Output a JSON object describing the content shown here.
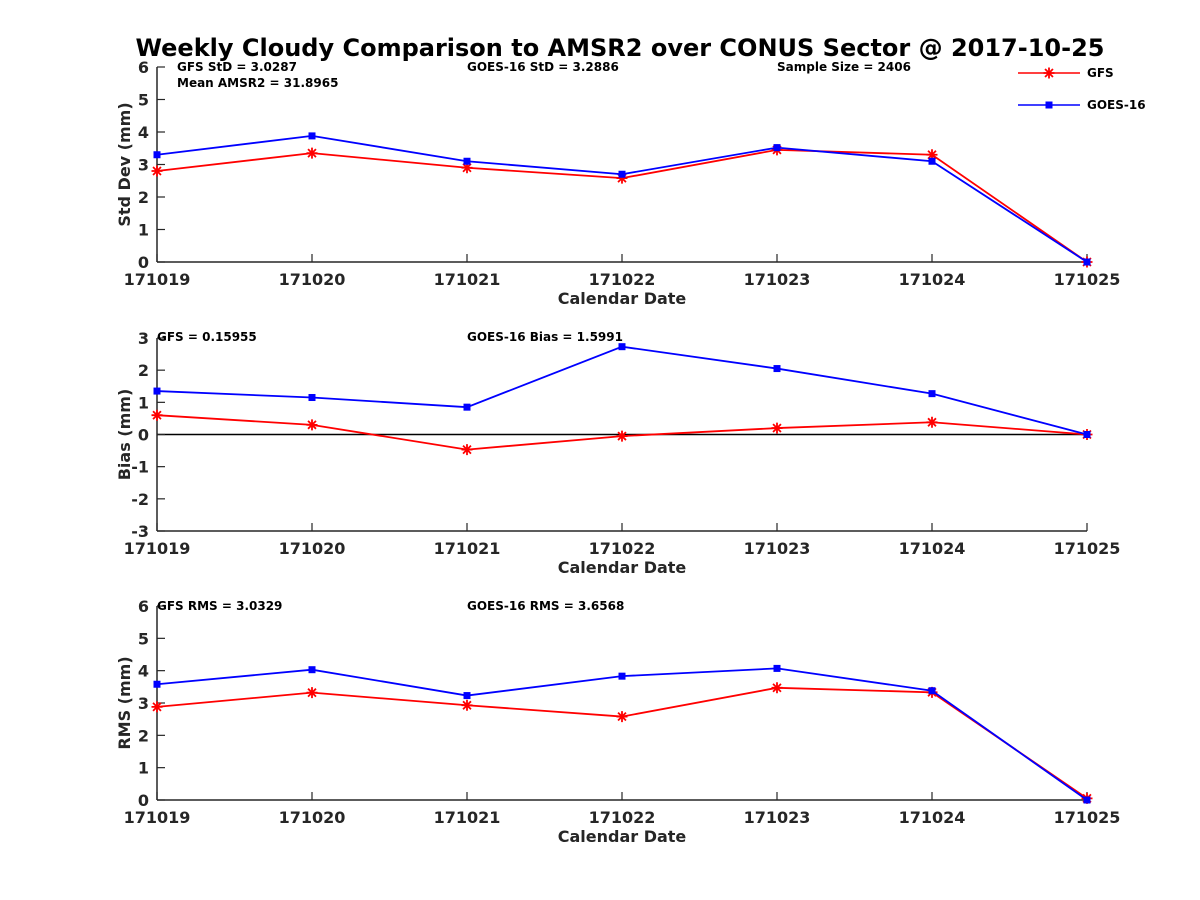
{
  "title": "Weekly Cloudy Comparison to AMSR2 over CONUS Sector @ 2017-10-25",
  "legend": {
    "placement": "top-right",
    "entries": [
      {
        "name": "GFS",
        "color": "#ff0000",
        "marker": "asterisk"
      },
      {
        "name": "GOES-16",
        "color": "#0000ff",
        "marker": "square"
      }
    ]
  },
  "chart_data": [
    {
      "type": "line",
      "ylabel": "Std Dev (mm)",
      "xlabel": "Calendar Date",
      "ylim": [
        0,
        6
      ],
      "yticks": [
        "0",
        "1",
        "2",
        "3",
        "4",
        "5",
        "6"
      ],
      "categories": [
        "171019",
        "171020",
        "171021",
        "171022",
        "171023",
        "171024",
        "171025"
      ],
      "zero_line": false,
      "annotations": [
        "GFS StD = 3.0287",
        "Mean AMSR2 = 31.8965",
        "GOES-16 StD = 3.2886",
        "Sample Size = 2406"
      ],
      "series": [
        {
          "name": "GFS",
          "color": "#ff0000",
          "marker": "asterisk",
          "values": [
            2.8,
            3.35,
            2.9,
            2.58,
            3.45,
            3.3,
            0.0
          ]
        },
        {
          "name": "GOES-16",
          "color": "#0000ff",
          "marker": "square",
          "values": [
            3.3,
            3.88,
            3.1,
            2.7,
            3.52,
            3.1,
            0.0
          ]
        }
      ]
    },
    {
      "type": "line",
      "ylabel": "Bias (mm)",
      "xlabel": "Calendar Date",
      "ylim": [
        -3,
        3
      ],
      "yticks": [
        "-3",
        "-2",
        "-1",
        "0",
        "1",
        "2",
        "3"
      ],
      "categories": [
        "171019",
        "171020",
        "171021",
        "171022",
        "171023",
        "171024",
        "171025"
      ],
      "zero_line": true,
      "annotations": [
        "GFS = 0.15955",
        "GOES-16 Bias  = 1.5991"
      ],
      "series": [
        {
          "name": "GFS",
          "color": "#ff0000",
          "marker": "asterisk",
          "values": [
            0.6,
            0.3,
            -0.47,
            -0.05,
            0.2,
            0.38,
            0.0
          ]
        },
        {
          "name": "GOES-16",
          "color": "#0000ff",
          "marker": "square",
          "values": [
            1.35,
            1.15,
            0.85,
            2.73,
            2.05,
            1.27,
            0.0
          ]
        }
      ]
    },
    {
      "type": "line",
      "ylabel": "RMS (mm)",
      "xlabel": "Calendar Date",
      "ylim": [
        0,
        6
      ],
      "yticks": [
        "0",
        "1",
        "2",
        "3",
        "4",
        "5",
        "6"
      ],
      "categories": [
        "171019",
        "171020",
        "171021",
        "171022",
        "171023",
        "171024",
        "171025"
      ],
      "zero_line": false,
      "annotations": [
        "GFS RMS = 3.0329",
        "GOES-16 RMS = 3.6568"
      ],
      "series": [
        {
          "name": "GFS",
          "color": "#ff0000",
          "marker": "asterisk",
          "values": [
            2.88,
            3.32,
            2.93,
            2.58,
            3.47,
            3.33,
            0.05
          ]
        },
        {
          "name": "GOES-16",
          "color": "#0000ff",
          "marker": "square",
          "values": [
            3.58,
            4.03,
            3.23,
            3.83,
            4.07,
            3.38,
            0.0
          ]
        }
      ]
    }
  ]
}
